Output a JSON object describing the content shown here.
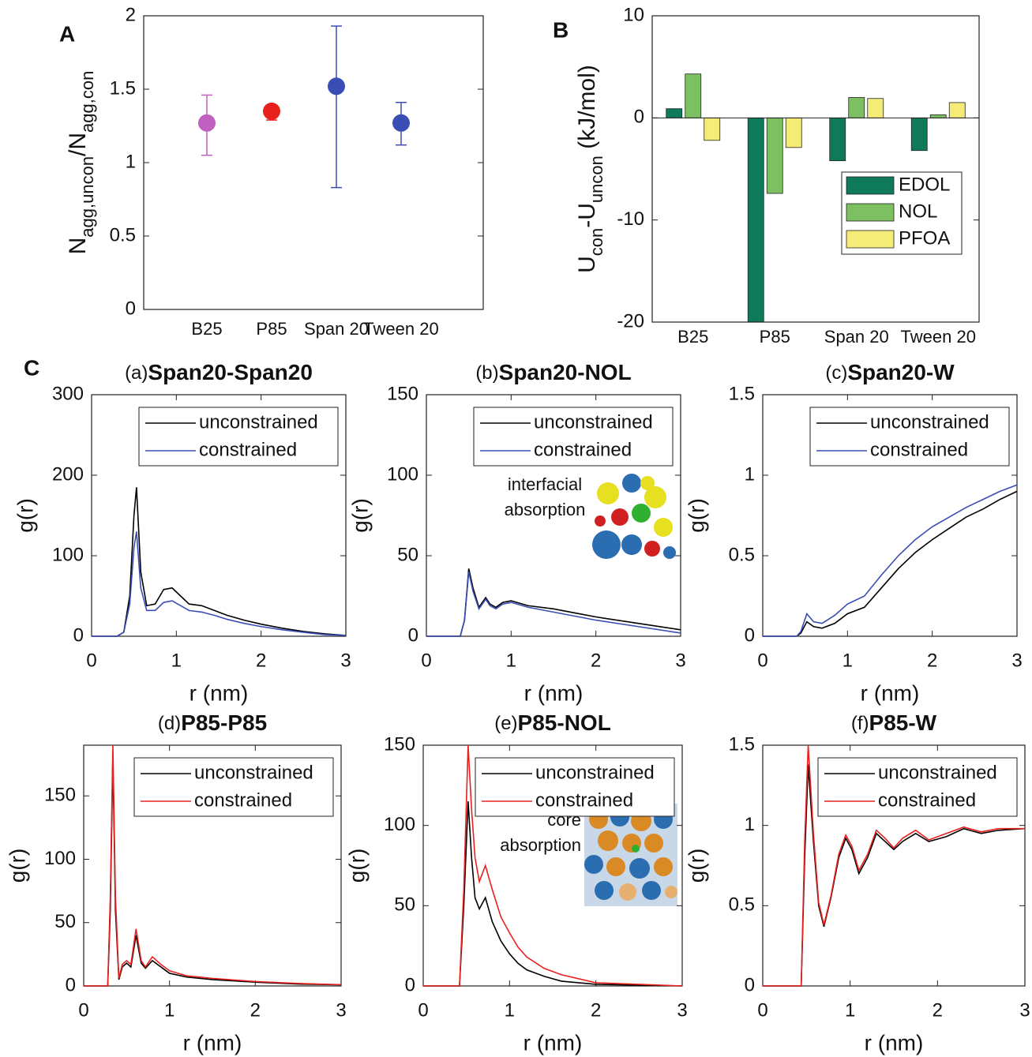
{
  "chart_data": [
    {
      "type": "scatter",
      "panel_label": "A",
      "ylabel": [
        "N",
        "agg,uncon",
        "/N",
        "agg,con"
      ],
      "categories": [
        "B25",
        "P85",
        "Span 20",
        "Tween 20"
      ],
      "values": [
        1.27,
        1.35,
        1.52,
        1.27
      ],
      "lower": [
        1.05,
        1.29,
        0.83,
        1.12
      ],
      "upper": [
        1.46,
        1.36,
        1.93,
        1.41
      ],
      "colors": [
        "#c060c0",
        "#e8201e",
        "#3a4db5",
        "#3a4db5"
      ],
      "ylim": [
        0,
        2
      ],
      "yticks": [
        0,
        0.5,
        1,
        1.5,
        2
      ]
    },
    {
      "type": "bar",
      "panel_label": "B",
      "ylabel": [
        "U",
        "con",
        "-U",
        "uncon",
        " (kJ/mol)"
      ],
      "categories": [
        "B25",
        "P85",
        "Span 20",
        "Tween 20"
      ],
      "series": [
        {
          "name": "EDOL",
          "color": "#0f7a5a",
          "values": [
            0.9,
            -20,
            -4.2,
            -3.2
          ]
        },
        {
          "name": "NOL",
          "color": "#7cc062",
          "values": [
            4.3,
            -7.4,
            2.0,
            0.3
          ]
        },
        {
          "name": "PFOA",
          "color": "#f5ec78",
          "values": [
            -2.2,
            -2.9,
            1.9,
            1.5
          ]
        }
      ],
      "ylim": [
        -20,
        10
      ],
      "yticks": [
        -20,
        -10,
        0,
        10
      ],
      "legend": "lower right"
    },
    {
      "type": "line",
      "panel_label": "C",
      "title_prefix": "(a)",
      "title": "Span20-Span20",
      "xlabel": "r (nm)",
      "ylabel": "g(r)",
      "x": [
        0,
        0.3,
        0.38,
        0.45,
        0.5,
        0.53,
        0.58,
        0.65,
        0.75,
        0.85,
        0.95,
        1.05,
        1.15,
        1.3,
        1.45,
        1.6,
        1.8,
        2.0,
        2.25,
        2.5,
        2.75,
        3.0
      ],
      "series": [
        {
          "name": "unconstrained",
          "color": "#000000",
          "values": [
            0,
            0,
            5,
            50,
            150,
            185,
            80,
            38,
            40,
            58,
            60,
            50,
            40,
            38,
            32,
            26,
            20,
            15,
            10,
            6,
            3,
            1
          ]
        },
        {
          "name": "constrained",
          "color": "#3a4db5",
          "values": [
            0,
            0,
            5,
            40,
            110,
            130,
            60,
            32,
            32,
            42,
            44,
            38,
            32,
            30,
            26,
            21,
            16,
            12,
            8,
            5,
            2,
            1
          ]
        }
      ],
      "xlim": [
        0,
        3
      ],
      "xticks": [
        0,
        1,
        2,
        3
      ],
      "ylim": [
        0,
        300
      ],
      "yticks": [
        0,
        100,
        200,
        300
      ],
      "legend": "upper right"
    },
    {
      "type": "line",
      "title_prefix": "(b)",
      "title": "Span20-NOL",
      "xlabel": "r (nm)",
      "ylabel": "g(r)",
      "annotation": [
        "interfacial",
        "absorption"
      ],
      "x": [
        0,
        0.4,
        0.45,
        0.5,
        0.55,
        0.62,
        0.7,
        0.75,
        0.82,
        0.9,
        1.0,
        1.2,
        1.5,
        1.8,
        2.0,
        2.5,
        3.0
      ],
      "series": [
        {
          "name": "unconstrained",
          "color": "#000000",
          "values": [
            0,
            0,
            10,
            42,
            30,
            18,
            24,
            20,
            18,
            21,
            22,
            19,
            17,
            14,
            12,
            8,
            4
          ]
        },
        {
          "name": "constrained",
          "color": "#3a4db5",
          "values": [
            0,
            0,
            10,
            40,
            28,
            17,
            23,
            19,
            17,
            20,
            21,
            18,
            15,
            12,
            10,
            6,
            2
          ]
        }
      ],
      "xlim": [
        0,
        3
      ],
      "xticks": [
        0,
        1,
        2,
        3
      ],
      "ylim": [
        0,
        150
      ],
      "yticks": [
        0,
        50,
        100,
        150
      ],
      "legend": "upper right"
    },
    {
      "type": "line",
      "title_prefix": "(c)",
      "title": "Span20-W",
      "xlabel": "r (nm)",
      "ylabel": "g(r)",
      "x": [
        0,
        0.4,
        0.45,
        0.52,
        0.6,
        0.7,
        0.85,
        1.0,
        1.2,
        1.4,
        1.6,
        1.8,
        2.0,
        2.2,
        2.4,
        2.6,
        2.8,
        3.0
      ],
      "series": [
        {
          "name": "unconstrained",
          "color": "#000000",
          "values": [
            0,
            0,
            0.02,
            0.09,
            0.06,
            0.05,
            0.08,
            0.14,
            0.18,
            0.3,
            0.42,
            0.52,
            0.6,
            0.67,
            0.74,
            0.79,
            0.85,
            0.9
          ]
        },
        {
          "name": "constrained",
          "color": "#3a4db5",
          "values": [
            0,
            0,
            0.03,
            0.14,
            0.09,
            0.08,
            0.13,
            0.2,
            0.25,
            0.38,
            0.5,
            0.6,
            0.68,
            0.74,
            0.8,
            0.85,
            0.9,
            0.94
          ]
        }
      ],
      "xlim": [
        0,
        3
      ],
      "xticks": [
        0,
        1,
        2,
        3
      ],
      "ylim": [
        0,
        1.5
      ],
      "yticks": [
        0,
        0.5,
        1,
        1.5
      ],
      "legend": "upper right"
    },
    {
      "type": "line",
      "title_prefix": "(d)",
      "title": "P85-P85",
      "xlabel": "r (nm)",
      "ylabel": "g(r)",
      "x": [
        0,
        0.28,
        0.31,
        0.34,
        0.37,
        0.41,
        0.45,
        0.5,
        0.55,
        0.61,
        0.67,
        0.72,
        0.8,
        0.9,
        1.0,
        1.2,
        1.5,
        2.0,
        2.5,
        3.0
      ],
      "series": [
        {
          "name": "unconstrained",
          "color": "#000000",
          "values": [
            0,
            0,
            60,
            180,
            60,
            5,
            15,
            18,
            15,
            40,
            18,
            14,
            20,
            15,
            10,
            7,
            5,
            3,
            1.5,
            1
          ]
        },
        {
          "name": "constrained",
          "color": "#e8201e",
          "values": [
            0,
            0,
            70,
            190,
            70,
            6,
            17,
            20,
            17,
            45,
            20,
            15,
            23,
            17,
            12,
            8,
            6,
            3.5,
            2,
            1
          ]
        }
      ],
      "xlim": [
        0,
        3
      ],
      "xticks": [
        0,
        1,
        2,
        3
      ],
      "ylim": [
        0,
        190
      ],
      "yticks": [
        0,
        50,
        100,
        150
      ],
      "legend": "upper right"
    },
    {
      "type": "line",
      "title_prefix": "(e)",
      "title": "P85-NOL",
      "xlabel": "r (nm)",
      "ylabel": "g(r)",
      "annotation": [
        "core",
        "absorption"
      ],
      "x": [
        0,
        0.42,
        0.47,
        0.52,
        0.56,
        0.6,
        0.65,
        0.72,
        0.8,
        0.9,
        1.0,
        1.1,
        1.2,
        1.4,
        1.6,
        2.0,
        2.5,
        3.0
      ],
      "series": [
        {
          "name": "unconstrained",
          "color": "#000000",
          "values": [
            0,
            0,
            50,
            115,
            80,
            55,
            48,
            55,
            40,
            28,
            20,
            14,
            10,
            6,
            3,
            1,
            0.5,
            0
          ]
        },
        {
          "name": "constrained",
          "color": "#e8201e",
          "values": [
            0,
            0,
            60,
            150,
            110,
            80,
            65,
            75,
            60,
            43,
            33,
            24,
            18,
            11,
            7,
            2,
            1,
            0
          ]
        }
      ],
      "xlim": [
        0,
        3
      ],
      "xticks": [
        0,
        1,
        2,
        3
      ],
      "ylim": [
        0,
        150
      ],
      "yticks": [
        0,
        50,
        100,
        150
      ],
      "legend": "upper right"
    },
    {
      "type": "line",
      "title_prefix": "(f)",
      "title": "P85-W",
      "xlabel": "r (nm)",
      "ylabel": "g(r)",
      "x": [
        0,
        0.44,
        0.48,
        0.52,
        0.58,
        0.64,
        0.7,
        0.78,
        0.87,
        0.95,
        1.02,
        1.1,
        1.2,
        1.3,
        1.4,
        1.5,
        1.6,
        1.75,
        1.9,
        2.1,
        2.3,
        2.5,
        2.7,
        3.0
      ],
      "series": [
        {
          "name": "unconstrained",
          "color": "#000000",
          "values": [
            0,
            0,
            0.8,
            1.38,
            0.9,
            0.5,
            0.37,
            0.55,
            0.8,
            0.92,
            0.85,
            0.7,
            0.8,
            0.95,
            0.9,
            0.85,
            0.9,
            0.95,
            0.9,
            0.93,
            0.98,
            0.95,
            0.97,
            0.98
          ]
        },
        {
          "name": "constrained",
          "color": "#e8201e",
          "values": [
            0,
            0,
            0.9,
            1.5,
            0.95,
            0.52,
            0.38,
            0.56,
            0.82,
            0.94,
            0.87,
            0.72,
            0.82,
            0.97,
            0.92,
            0.86,
            0.92,
            0.97,
            0.91,
            0.95,
            0.99,
            0.96,
            0.98,
            0.98
          ]
        }
      ],
      "xlim": [
        0,
        3
      ],
      "xticks": [
        0,
        1,
        2,
        3
      ],
      "ylim": [
        0,
        1.5
      ],
      "yticks": [
        0,
        0.5,
        1,
        1.5
      ],
      "legend": "upper right"
    }
  ]
}
